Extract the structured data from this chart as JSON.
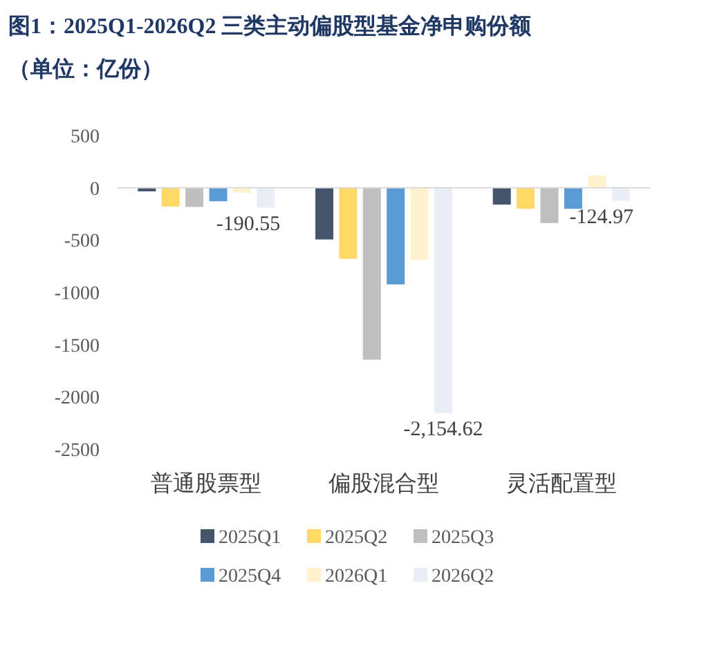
{
  "chart_data": {
    "type": "bar",
    "title": "图1：2025Q1-2026Q2 三类主动偏股型基金净申购份额",
    "subtitle": "（单位：亿份）",
    "categories": [
      "普通股票型",
      "偏股混合型",
      "灵活配置型"
    ],
    "series": [
      {
        "name": "2025Q1",
        "color": "#44546a",
        "values": [
          -35,
          -495,
          -162
        ]
      },
      {
        "name": "2025Q2",
        "color": "#ffd966",
        "values": [
          -180,
          -680,
          -202
        ]
      },
      {
        "name": "2025Q3",
        "color": "#bfbfbf",
        "values": [
          -184,
          -1645,
          -338
        ]
      },
      {
        "name": "2025Q4",
        "color": "#5b9bd5",
        "values": [
          -130,
          -925,
          -202
        ]
      },
      {
        "name": "2026Q1",
        "color": "#fff2cc",
        "values": [
          -48,
          -693,
          118
        ]
      },
      {
        "name": "2026Q2",
        "color": "#e9edf6",
        "values": [
          -190.55,
          -2154.62,
          -124.97
        ],
        "value_labels": [
          "-190.55",
          "-2,154.62",
          "-124.97"
        ]
      }
    ],
    "ylim": [
      -2500,
      500
    ],
    "yticks": [
      -2500,
      -2000,
      -1500,
      -1000,
      -500,
      0,
      500
    ],
    "legend": "bottom"
  }
}
